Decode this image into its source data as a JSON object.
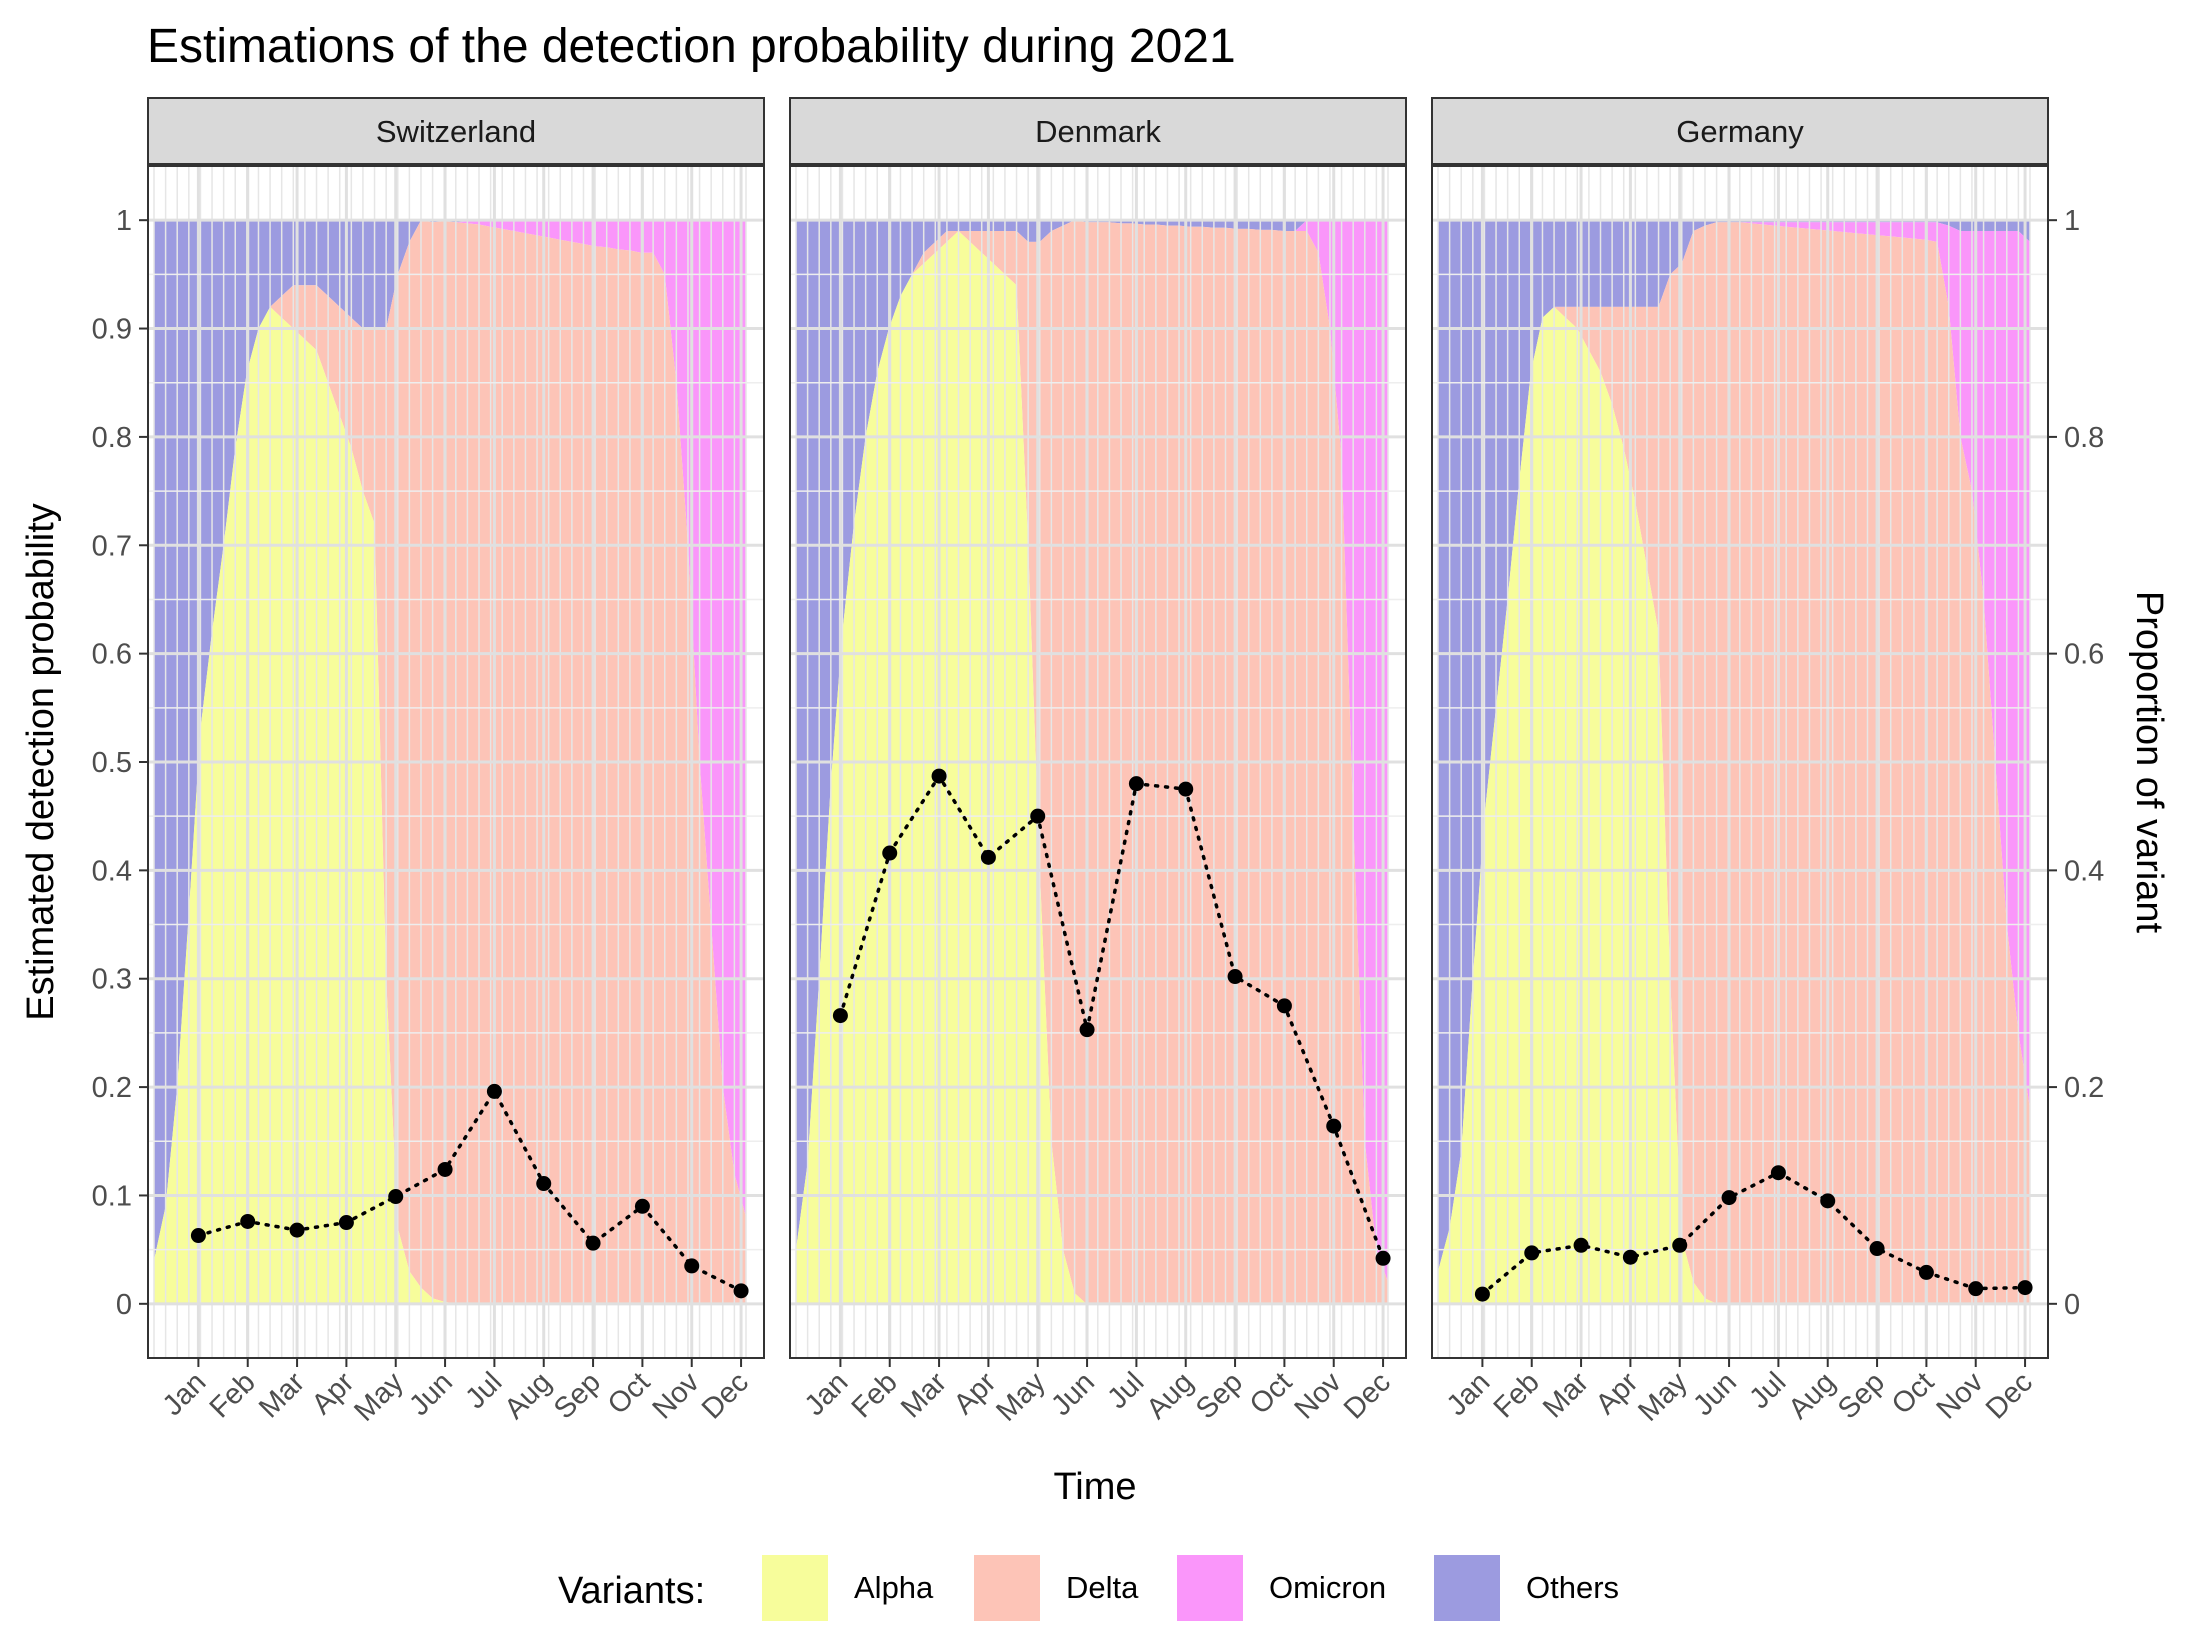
{
  "chart_data": {
    "type": "area",
    "title": "Estimations of the detection probability during 2021",
    "xlabel": "Time",
    "ylabel": "Estimated detection probability",
    "ylabel_secondary": "Proportion of variant",
    "y_ticks": [
      "0",
      "0.1",
      "0.2",
      "0.3",
      "0.4",
      "0.5",
      "0.6",
      "0.7",
      "0.8",
      "0.9",
      "1"
    ],
    "y2_ticks": [
      "0",
      "0.2",
      "0.4",
      "0.6",
      "0.8",
      "1"
    ],
    "ylim": [
      -0.05,
      1.05
    ],
    "months": [
      "Jan",
      "Feb",
      "Mar",
      "Apr",
      "May",
      "Jun",
      "Jul",
      "Aug",
      "Sep",
      "Oct",
      "Nov",
      "Dec"
    ],
    "grid": true,
    "legend": {
      "title": "Variants:",
      "position": "bottom",
      "items": [
        {
          "label": "Alpha",
          "color": "#f7fd9b"
        },
        {
          "label": "Delta",
          "color": "#fdc4b7"
        },
        {
          "label": "Omicron",
          "color": "#fa96fa"
        },
        {
          "label": "Others",
          "color": "#9c9be0"
        }
      ]
    },
    "proportion_x_weeks": [
      1,
      2,
      3,
      4,
      5,
      6,
      7,
      8,
      9,
      10,
      11,
      12,
      13,
      14,
      15,
      16,
      17,
      18,
      19,
      20,
      21,
      22,
      23,
      24,
      25,
      26,
      27,
      28,
      29,
      30,
      31,
      32,
      33,
      34,
      35,
      36,
      37,
      38,
      39,
      40,
      41,
      42,
      43,
      44,
      45,
      46,
      47,
      48,
      49,
      50,
      51,
      52
    ],
    "panels": [
      {
        "name": "Switzerland",
        "detection_months": [
          1,
          2,
          3,
          4,
          5,
          6,
          7,
          8,
          9,
          10,
          11,
          12
        ],
        "detection": [
          0.063,
          0.076,
          0.068,
          0.075,
          0.099,
          0.124,
          0.196,
          0.111,
          0.056,
          0.09,
          0.035,
          0.012
        ],
        "proportions": {
          "Alpha": [
            0.04,
            0.09,
            0.2,
            0.36,
            0.53,
            0.62,
            0.7,
            0.79,
            0.86,
            0.9,
            0.92,
            0.91,
            0.9,
            0.89,
            0.88,
            0.85,
            0.82,
            0.79,
            0.75,
            0.72,
            0.3,
            0.07,
            0.03,
            0.015,
            0.005,
            0.002,
            0,
            0,
            0,
            0,
            0,
            0,
            0,
            0,
            0,
            0,
            0,
            0,
            0,
            0,
            0,
            0,
            0,
            0,
            0,
            0,
            0,
            0,
            0,
            0,
            0,
            0
          ],
          "Delta": [
            0,
            0,
            0,
            0,
            0,
            0,
            0,
            0,
            0,
            0,
            0,
            0.02,
            0.04,
            0.05,
            0.06,
            0.08,
            0.1,
            0.12,
            0.15,
            0.18,
            0.6,
            0.88,
            0.95,
            0.985,
            0.993,
            0.997,
            0.998,
            0.997,
            0.996,
            0.994,
            0.992,
            0.99,
            0.988,
            0.986,
            0.984,
            0.982,
            0.98,
            0.978,
            0.976,
            0.975,
            0.973,
            0.972,
            0.97,
            0.97,
            0.95,
            0.85,
            0.7,
            0.5,
            0.35,
            0.2,
            0.12,
            0.08
          ],
          "Omicron": [
            0,
            0,
            0,
            0,
            0,
            0,
            0,
            0,
            0,
            0,
            0,
            0,
            0,
            0,
            0,
            0,
            0,
            0,
            0,
            0,
            0,
            0,
            0,
            0,
            0,
            0,
            0,
            0.002,
            0.003,
            0.005,
            0.007,
            0.009,
            0.011,
            0.013,
            0.015,
            0.017,
            0.019,
            0.021,
            0.023,
            0.024,
            0.026,
            0.027,
            0.029,
            0.03,
            0.05,
            0.15,
            0.3,
            0.5,
            0.65,
            0.8,
            0.88,
            0.92
          ]
        }
      },
      {
        "name": "Denmark",
        "detection_months": [
          1,
          2,
          3,
          4,
          5,
          6,
          7,
          8,
          9,
          10,
          11,
          12
        ],
        "detection": [
          0.266,
          0.416,
          0.487,
          0.412,
          0.45,
          0.253,
          0.48,
          0.475,
          0.302,
          0.275,
          0.164,
          0.042
        ],
        "proportions": {
          "Alpha": [
            0.05,
            0.13,
            0.3,
            0.48,
            0.62,
            0.72,
            0.8,
            0.86,
            0.9,
            0.93,
            0.95,
            0.96,
            0.97,
            0.98,
            0.99,
            0.98,
            0.97,
            0.96,
            0.95,
            0.94,
            0.7,
            0.4,
            0.15,
            0.05,
            0.01,
            0,
            0,
            0,
            0,
            0,
            0,
            0,
            0,
            0,
            0,
            0,
            0,
            0,
            0,
            0,
            0,
            0,
            0,
            0,
            0,
            0,
            0,
            0,
            0,
            0,
            0,
            0
          ],
          "Delta": [
            0,
            0,
            0,
            0,
            0,
            0,
            0,
            0,
            0,
            0,
            0,
            0.01,
            0.01,
            0.01,
            0,
            0.01,
            0.02,
            0.03,
            0.04,
            0.05,
            0.28,
            0.58,
            0.84,
            0.945,
            0.99,
            0.998,
            0.998,
            0.998,
            0.997,
            0.997,
            0.996,
            0.996,
            0.995,
            0.995,
            0.994,
            0.994,
            0.993,
            0.993,
            0.992,
            0.992,
            0.991,
            0.991,
            0.99,
            0.99,
            0.99,
            0.97,
            0.9,
            0.78,
            0.45,
            0.15,
            0.05,
            0.02
          ],
          "Omicron": [
            0,
            0,
            0,
            0,
            0,
            0,
            0,
            0,
            0,
            0,
            0,
            0,
            0,
            0,
            0,
            0,
            0,
            0,
            0,
            0,
            0,
            0,
            0,
            0,
            0,
            0,
            0,
            0,
            0,
            0,
            0,
            0,
            0,
            0,
            0,
            0,
            0,
            0,
            0,
            0,
            0,
            0,
            0,
            0,
            0.01,
            0.03,
            0.1,
            0.22,
            0.55,
            0.85,
            0.95,
            0.98
          ]
        }
      },
      {
        "name": "Germany",
        "detection_months": [
          1,
          2,
          3,
          4,
          5,
          6,
          7,
          8,
          9,
          10,
          11,
          12
        ],
        "detection": [
          0.009,
          0.047,
          0.054,
          0.043,
          0.054,
          0.098,
          0.121,
          0.095,
          0.051,
          0.029,
          0.014,
          0.015
        ],
        "proportions": {
          "Alpha": [
            0.03,
            0.07,
            0.14,
            0.3,
            0.45,
            0.55,
            0.65,
            0.76,
            0.86,
            0.91,
            0.92,
            0.91,
            0.9,
            0.88,
            0.86,
            0.83,
            0.79,
            0.74,
            0.68,
            0.62,
            0.3,
            0.06,
            0.02,
            0.005,
            0,
            0,
            0,
            0,
            0,
            0,
            0,
            0,
            0,
            0,
            0,
            0,
            0,
            0,
            0,
            0,
            0,
            0,
            0,
            0,
            0,
            0,
            0,
            0,
            0,
            0,
            0,
            0
          ],
          "Delta": [
            0,
            0,
            0,
            0,
            0,
            0,
            0,
            0,
            0,
            0,
            0,
            0.01,
            0.02,
            0.04,
            0.06,
            0.09,
            0.13,
            0.18,
            0.24,
            0.3,
            0.65,
            0.9,
            0.97,
            0.99,
            0.998,
            0.998,
            0.998,
            0.997,
            0.996,
            0.995,
            0.994,
            0.993,
            0.992,
            0.991,
            0.99,
            0.989,
            0.988,
            0.987,
            0.986,
            0.985,
            0.984,
            0.983,
            0.982,
            0.98,
            0.92,
            0.8,
            0.75,
            0.65,
            0.5,
            0.35,
            0.25,
            0.18
          ],
          "Omicron": [
            0,
            0,
            0,
            0,
            0,
            0,
            0,
            0,
            0,
            0,
            0,
            0,
            0,
            0,
            0,
            0,
            0,
            0,
            0,
            0,
            0,
            0,
            0,
            0,
            0,
            0,
            0,
            0.001,
            0.002,
            0.003,
            0.004,
            0.005,
            0.006,
            0.007,
            0.008,
            0.009,
            0.01,
            0.011,
            0.012,
            0.013,
            0.014,
            0.015,
            0.016,
            0.018,
            0.075,
            0.19,
            0.24,
            0.34,
            0.49,
            0.64,
            0.74,
            0.8
          ]
        }
      }
    ]
  }
}
